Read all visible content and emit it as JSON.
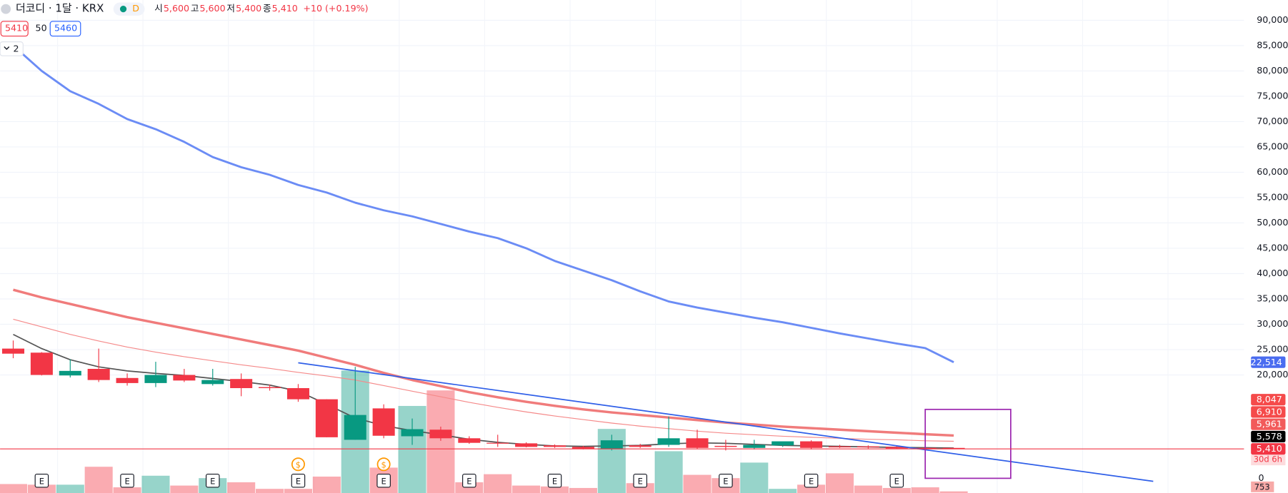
{
  "chart_data": {
    "type": "candlestick",
    "title": "더코디 · 1달 · KRX",
    "badge": "D",
    "ohlc_labels": [
      {
        "label": "시",
        "value": "5,600"
      },
      {
        "label": "고",
        "value": "5,600"
      },
      {
        "label": "저",
        "value": "5,400"
      },
      {
        "label": "종",
        "value": "5,410"
      }
    ],
    "change": "+10 (+0.19%)",
    "indicator_values": [
      "5410",
      "50",
      "5460"
    ],
    "collapse": "2",
    "up_color": "#089981",
    "down_color": "#f23645",
    "candles": {
      "open": [
        25200,
        24400,
        19900,
        21200,
        19400,
        18400,
        20000,
        18200,
        19200,
        17600,
        17400,
        15200,
        7200,
        13400,
        7900,
        9200,
        7500,
        6600,
        6500,
        6100,
        5800,
        5400,
        6100,
        6200,
        7500,
        6000,
        5600,
        6100,
        6900,
        5900,
        5900,
        5800,
        5600,
        5600
      ],
      "high": [
        26800,
        24500,
        23100,
        25200,
        20300,
        22600,
        21200,
        21200,
        20300,
        18100,
        18200,
        15200,
        21600,
        14200,
        11400,
        9800,
        7900,
        8200,
        6700,
        6300,
        6000,
        8200,
        6400,
        11800,
        9200,
        7200,
        7200,
        6800,
        7100,
        6200,
        6100,
        6000,
        5700,
        5600
      ],
      "low": [
        23300,
        19900,
        19500,
        18600,
        17900,
        17600,
        18600,
        17900,
        15800,
        16900,
        14700,
        7700,
        7200,
        7500,
        6200,
        7000,
        6400,
        5800,
        5700,
        5600,
        5300,
        5100,
        5600,
        5800,
        5400,
        5100,
        5300,
        5800,
        5300,
        5600,
        5500,
        5400,
        5200,
        5400
      ],
      "close": [
        24200,
        20000,
        20800,
        19000,
        18400,
        20000,
        18900,
        19000,
        17400,
        17400,
        15200,
        7700,
        12100,
        8000,
        9300,
        7500,
        6600,
        6500,
        5800,
        5800,
        5400,
        7100,
        5800,
        7500,
        5600,
        5800,
        6200,
        6900,
        5600,
        5700,
        5700,
        5500,
        5400,
        5410
      ]
    },
    "volume": [
      4100,
      3800,
      3800,
      12000,
      2600,
      7900,
      3400,
      6800,
      4900,
      1900,
      1900,
      7500,
      56000,
      11600,
      39800,
      46900,
      4900,
      8600,
      3400,
      3000,
      2300,
      29300,
      4500,
      19100,
      8300,
      6800,
      13900,
      1900,
      3800,
      9000,
      3400,
      2300,
      2600,
      753
    ],
    "vlim": [
      0,
      60000
    ],
    "vticks": [
      0
    ],
    "series": [
      {
        "color": "#6b8cf5",
        "width": 2.5,
        "values": [
          85000,
          80000,
          76000,
          73500,
          70500,
          68500,
          66000,
          63000,
          61000,
          59500,
          57500,
          56000,
          54000,
          52500,
          51300,
          49800,
          48300,
          47000,
          45000,
          42500,
          40600,
          38700,
          36500,
          34500,
          33300,
          32300,
          31300,
          30400,
          29300,
          28200,
          27200,
          26200,
          25300,
          22514
        ]
      },
      {
        "color": "#f07b7b",
        "width": 3,
        "values": [
          36800,
          35300,
          34000,
          32700,
          31400,
          30300,
          29200,
          28100,
          27000,
          25900,
          24800,
          23400,
          22000,
          20400,
          19000,
          17800,
          16600,
          15600,
          14700,
          13900,
          13200,
          12600,
          12100,
          11600,
          11100,
          10600,
          10200,
          9800,
          9500,
          9200,
          8900,
          8600,
          8300,
          8047
        ]
      },
      {
        "color": "#f58a8a",
        "width": 1,
        "values": [
          31000,
          29500,
          28000,
          26700,
          25500,
          24500,
          23600,
          22800,
          22000,
          21300,
          20500,
          19800,
          19000,
          17900,
          16800,
          15700,
          14600,
          13600,
          12700,
          11900,
          11200,
          10500,
          9900,
          9400,
          8900,
          8500,
          8200,
          7900,
          7700,
          7500,
          7300,
          7200,
          7000,
          6910
        ]
      },
      {
        "color": "#555555",
        "width": 1.5,
        "values": [
          28000,
          25200,
          23000,
          21600,
          20800,
          20300,
          19900,
          19300,
          18700,
          18000,
          16800,
          14200,
          11500,
          10000,
          9000,
          8200,
          7300,
          6700,
          6300,
          6000,
          5900,
          6000,
          6100,
          6400,
          6600,
          6500,
          6300,
          6100,
          6000,
          5900,
          5800,
          5700,
          5650,
          5578
        ]
      }
    ],
    "trendline": {
      "x": [
        10,
        40
      ],
      "y": [
        22400,
        -1000
      ],
      "color": "#2f5fe8"
    },
    "box": {
      "x": [
        32,
        35
      ],
      "y": [
        13200,
        -400
      ],
      "color": "#9c27b0"
    },
    "events": [
      {
        "candle": 1,
        "label": "E"
      },
      {
        "candle": 4,
        "label": "E"
      },
      {
        "candle": 7,
        "label": "E"
      },
      {
        "candle": 10,
        "label": "E"
      },
      {
        "candle": 13,
        "label": "E"
      },
      {
        "candle": 16,
        "label": "E"
      },
      {
        "candle": 19,
        "label": "E"
      },
      {
        "candle": 22,
        "label": "E"
      },
      {
        "candle": 25,
        "label": "E"
      },
      {
        "candle": 28,
        "label": "E"
      },
      {
        "candle": 31,
        "label": "E"
      }
    ],
    "dividends": [
      {
        "candle": 10,
        "label": "$"
      },
      {
        "candle": 13,
        "label": "$"
      }
    ],
    "ylim": [
      -3300,
      94000
    ],
    "yticks": [
      {
        "value": 90000,
        "label": "90,000"
      },
      {
        "value": 85000,
        "label": "85,000"
      },
      {
        "value": 80000,
        "label": "80,000"
      },
      {
        "value": 75000,
        "label": "75,000"
      },
      {
        "value": 70000,
        "label": "70,000"
      },
      {
        "value": 65000,
        "label": "65,000"
      },
      {
        "value": 60000,
        "label": "60,000"
      },
      {
        "value": 55000,
        "label": "55,000"
      },
      {
        "value": 50000,
        "label": "50,000"
      },
      {
        "value": 45000,
        "label": "45,000"
      },
      {
        "value": 40000,
        "label": "40,000"
      },
      {
        "value": 35000,
        "label": "35,000"
      },
      {
        "value": 30000,
        "label": "30,000"
      },
      {
        "value": 25000,
        "label": "25,000"
      },
      {
        "value": 20000,
        "label": "20,000"
      }
    ],
    "price_tags": [
      {
        "value": 22514,
        "label": "22,514",
        "color": "#4a6cf0"
      },
      {
        "value": 8047,
        "label": "8,047",
        "color": "#f54a4a"
      },
      {
        "value": 6910,
        "label": "6,910",
        "color": "#f54a4a"
      },
      {
        "value": 5961,
        "label": "5,961",
        "color": "#f25a5a"
      },
      {
        "value": 5578,
        "label": "5,578",
        "color": "#000000"
      },
      {
        "value": 5410,
        "label": "5,410",
        "color": "#f23645"
      }
    ],
    "countdown": "30d 6h",
    "grid": true
  }
}
